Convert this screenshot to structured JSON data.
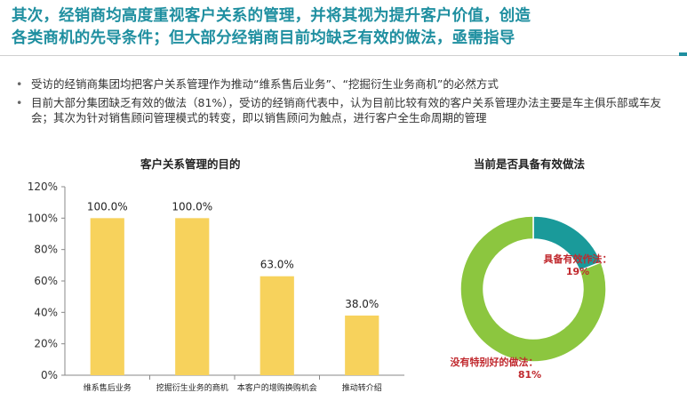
{
  "header": {
    "title": "其次，经销商均高度重视客户关系的管理，并将其视为提升客户价值，创造各类商机的先导条件；但大部分经销商目前均缺乏有效的做法，亟需指导"
  },
  "bullets": [
    "受访的经销商集团均把客户关系管理作为推动“维系售后业务”、“挖掘衍生业务商机”的必然方式",
    "目前大部分集团缺乏有效的做法（81%），受访的经销商代表中，认为目前比较有效的客户关系管理办法主要是车主俱乐部或车友会；其次为针对销售顾问管理模式的转变，即以销售顾问为触点，进行客户全生命周期的管理"
  ],
  "chart_data": [
    {
      "type": "bar",
      "title": "客户关系管理的目的",
      "categories": [
        "维系售后业务",
        "挖掘衍生业务的商机",
        "本客户的增购换购机会",
        "推动转介绍"
      ],
      "values": [
        100.0,
        100.0,
        63.0,
        38.0
      ],
      "data_labels": [
        "100.0%",
        "100.0%",
        "63.0%",
        "38.0%"
      ],
      "yticks": [
        "0%",
        "20%",
        "40%",
        "60%",
        "80%",
        "100%",
        "120%"
      ],
      "ylim": [
        0,
        120
      ],
      "grid": false,
      "colors": {
        "bar": "#f7d25c"
      }
    },
    {
      "type": "pie",
      "style": "donut",
      "title": "当前是否具备有效做法",
      "slices": [
        {
          "label": "具备有效作法：",
          "pct_label": "19%",
          "value": 19,
          "color": "#1a9a9a"
        },
        {
          "label": "没有特别好的做法：",
          "pct_label": "81%",
          "value": 81,
          "color": "#8cc63f"
        }
      ],
      "colors": {
        "label_text": "#c0282d"
      }
    }
  ]
}
